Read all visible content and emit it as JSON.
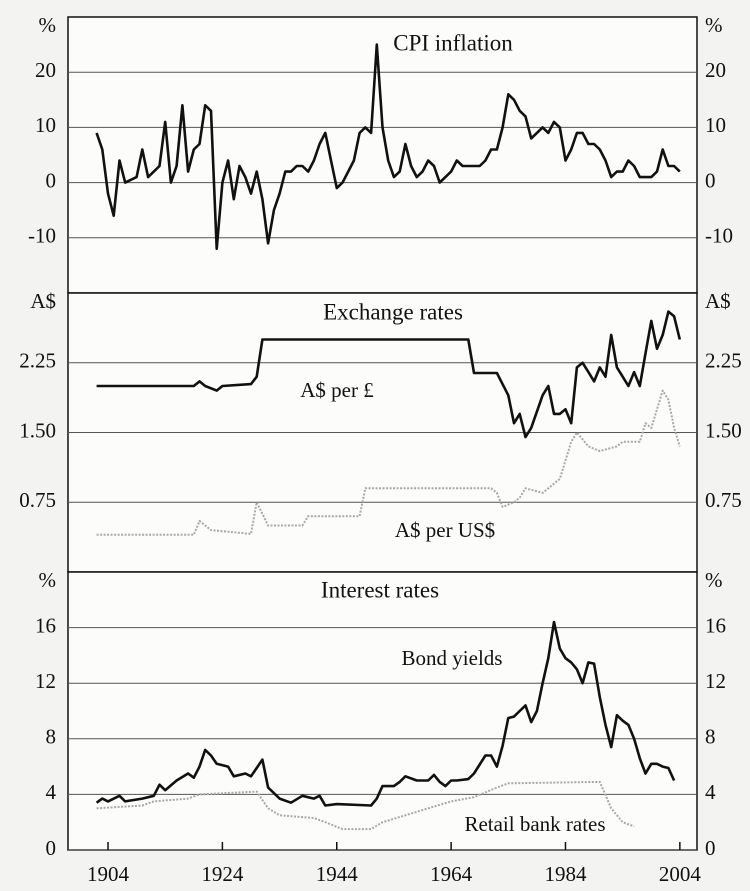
{
  "chart_data": [
    {
      "type": "line",
      "title": "CPI inflation",
      "y_unit": "%",
      "xlim": [
        1897,
        2007
      ],
      "ylim": [
        -20,
        30
      ],
      "yticks": [
        -10,
        0,
        10,
        20
      ],
      "grid": true,
      "series": [
        {
          "color": "#111111",
          "x": [
            1902,
            1903,
            1904,
            1905,
            1906,
            1907,
            1909,
            1910,
            1911,
            1912,
            1913,
            1914,
            1915,
            1916,
            1917,
            1918,
            1919,
            1920,
            1921,
            1922,
            1923,
            1924,
            1925,
            1926,
            1927,
            1928,
            1929,
            1930,
            1931,
            1932,
            1933,
            1934,
            1935,
            1936,
            1937,
            1938,
            1939,
            1940,
            1941,
            1942,
            1943,
            1944,
            1945,
            1946,
            1947,
            1948,
            1949,
            1950,
            1951,
            1952,
            1953,
            1954,
            1955,
            1956,
            1957,
            1958,
            1959,
            1960,
            1961,
            1962,
            1963,
            1964,
            1965,
            1966,
            1967,
            1968,
            1969,
            1970,
            1971,
            1972,
            1973,
            1974,
            1975,
            1976,
            1977,
            1978,
            1979,
            1980,
            1981,
            1982,
            1983,
            1984,
            1985,
            1986,
            1987,
            1988,
            1989,
            1990,
            1991,
            1992,
            1993,
            1994,
            1995,
            1996,
            1997,
            1998,
            1999,
            2000,
            2001,
            2002,
            2003,
            2004
          ],
          "values": [
            9,
            6,
            -2,
            -6,
            4,
            0,
            1,
            6,
            1,
            2,
            3,
            11,
            0,
            3,
            14,
            2,
            6,
            7,
            14,
            13,
            -12,
            0,
            4,
            -3,
            3,
            1,
            -2,
            2,
            -3,
            -11,
            -5,
            -2,
            2,
            2,
            3,
            3,
            2,
            4,
            7,
            9,
            4,
            -1,
            0,
            2,
            4,
            9,
            10,
            9,
            25,
            10,
            4,
            1,
            2,
            7,
            3,
            1,
            2,
            4,
            3,
            0,
            1,
            2,
            4,
            3,
            3,
            3,
            3,
            4,
            6,
            6,
            10,
            16,
            15,
            13,
            12,
            8,
            9,
            10,
            9,
            11,
            10,
            4,
            6,
            9,
            9,
            7,
            7,
            6,
            4,
            1,
            2,
            2,
            4,
            3,
            1,
            1,
            1,
            2,
            6,
            3,
            3,
            2
          ]
        }
      ]
    },
    {
      "type": "line",
      "title": "Exchange rates",
      "y_unit": "A$",
      "xlim": [
        1897,
        2007
      ],
      "ylim": [
        0,
        3
      ],
      "yticks": [
        0.75,
        {
          "value": 1.5,
          "label": "1.50"
        },
        2.25
      ],
      "grid": true,
      "series": [
        {
          "name": "A$ per £",
          "color": "#111111",
          "x": [
            1902,
            1919,
            1920,
            1921,
            1923,
            1924,
            1929,
            1930,
            1931,
            1967,
            1968,
            1972,
            1974,
            1975,
            1976,
            1977,
            1978,
            1980,
            1981,
            1982,
            1983,
            1984,
            1985,
            1986,
            1987,
            1988,
            1989,
            1990,
            1991,
            1992,
            1993,
            1994,
            1995,
            1996,
            1997,
            1998,
            1999,
            2000,
            2001,
            2002,
            2003,
            2004
          ],
          "values": [
            2.0,
            2.0,
            2.05,
            2.0,
            1.95,
            2.0,
            2.02,
            2.1,
            2.5,
            2.5,
            2.14,
            2.14,
            1.9,
            1.6,
            1.7,
            1.45,
            1.55,
            1.9,
            2.0,
            1.7,
            1.7,
            1.75,
            1.6,
            2.2,
            2.25,
            2.15,
            2.05,
            2.2,
            2.1,
            2.55,
            2.2,
            2.1,
            2.0,
            2.15,
            2.0,
            2.35,
            2.7,
            2.4,
            2.55,
            2.8,
            2.75,
            2.5
          ]
        },
        {
          "name": "A$ per US$",
          "color": "#a8a8a8",
          "x": [
            1902,
            1919,
            1920,
            1922,
            1929,
            1930,
            1932,
            1938,
            1939,
            1948,
            1949,
            1971,
            1972,
            1973,
            1975,
            1976,
            1977,
            1980,
            1983,
            1985,
            1986,
            1988,
            1990,
            1993,
            1994,
            1997,
            1998,
            1999,
            2000,
            2001,
            2002,
            2003,
            2004
          ],
          "values": [
            0.4,
            0.4,
            0.55,
            0.45,
            0.41,
            0.75,
            0.5,
            0.5,
            0.6,
            0.6,
            0.9,
            0.9,
            0.85,
            0.7,
            0.75,
            0.8,
            0.9,
            0.85,
            1.0,
            1.4,
            1.5,
            1.35,
            1.3,
            1.35,
            1.4,
            1.4,
            1.6,
            1.55,
            1.75,
            1.95,
            1.85,
            1.55,
            1.35
          ]
        }
      ]
    },
    {
      "type": "line",
      "title": "Interest rates",
      "y_unit": "%",
      "xlim": [
        1897,
        2007
      ],
      "ylim": [
        0,
        20
      ],
      "yticks": [
        0,
        4,
        8,
        12,
        16
      ],
      "grid": true,
      "xticks": [
        1904,
        1924,
        1944,
        1964,
        1984,
        2004
      ],
      "series": [
        {
          "name": "Bond yields",
          "color": "#111111",
          "x": [
            1902,
            1903,
            1904,
            1906,
            1907,
            1910,
            1912,
            1913,
            1914,
            1916,
            1918,
            1919,
            1920,
            1921,
            1922,
            1923,
            1925,
            1926,
            1928,
            1929,
            1931,
            1932,
            1934,
            1936,
            1938,
            1940,
            1941,
            1942,
            1944,
            1950,
            1951,
            1952,
            1954,
            1955,
            1956,
            1958,
            1960,
            1961,
            1962,
            1963,
            1964,
            1965,
            1967,
            1968,
            1970,
            1971,
            1972,
            1973,
            1974,
            1975,
            1976,
            1977,
            1978,
            1979,
            1980,
            1981,
            1982,
            1983,
            1984,
            1985,
            1986,
            1987,
            1988,
            1989,
            1990,
            1991,
            1992,
            1993,
            1994,
            1995,
            1996,
            1997,
            1998,
            1999,
            2000,
            2001,
            2002,
            2003
          ],
          "values": [
            3.4,
            3.7,
            3.5,
            3.9,
            3.5,
            3.7,
            3.9,
            4.7,
            4.3,
            5.0,
            5.5,
            5.2,
            6.0,
            7.2,
            6.8,
            6.2,
            6.0,
            5.3,
            5.5,
            5.3,
            6.5,
            4.5,
            3.7,
            3.4,
            3.9,
            3.7,
            3.9,
            3.2,
            3.3,
            3.2,
            3.7,
            4.6,
            4.6,
            4.9,
            5.3,
            5.0,
            5.0,
            5.4,
            4.9,
            4.6,
            5.0,
            5.0,
            5.1,
            5.5,
            6.8,
            6.8,
            6.0,
            7.5,
            9.5,
            9.6,
            10.0,
            10.4,
            9.2,
            10.0,
            12.0,
            13.8,
            16.4,
            14.5,
            13.8,
            13.5,
            13.0,
            12.0,
            13.5,
            13.4,
            11.0,
            9.0,
            7.4,
            9.7,
            9.3,
            9.0,
            8.0,
            6.6,
            5.5,
            6.2,
            6.2,
            6.0,
            5.9,
            5.0
          ]
        },
        {
          "name": "Retail bank rates",
          "color": "#a8a8a8",
          "x": [
            1902,
            1910,
            1912,
            1918,
            1920,
            1930,
            1932,
            1934,
            1940,
            1942,
            1945,
            1950,
            1952,
            1956,
            1960,
            1964,
            1968,
            1972,
            1974,
            1990,
            1992,
            1994,
            1996
          ],
          "values": [
            3.0,
            3.2,
            3.5,
            3.7,
            4.0,
            4.2,
            3.0,
            2.5,
            2.3,
            2.0,
            1.5,
            1.5,
            2.0,
            2.5,
            3.0,
            3.5,
            3.8,
            4.5,
            4.8,
            4.9,
            3.0,
            2.0,
            1.7
          ]
        }
      ]
    }
  ]
}
